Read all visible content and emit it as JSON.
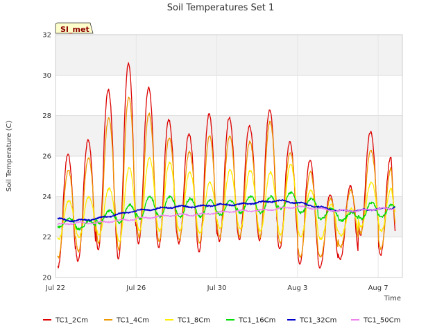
{
  "chart_data": {
    "type": "line",
    "title": "Soil Temperatures Set 1",
    "xlabel": "Time",
    "ylabel": "Soil Temperature (C)",
    "ylim": [
      20,
      32
    ],
    "yticks": [
      20,
      22,
      24,
      26,
      28,
      30,
      32
    ],
    "xlim_days": [
      0,
      17.2
    ],
    "xticks": [
      {
        "label": "Jul 22",
        "day": 0
      },
      {
        "label": "Jul 26",
        "day": 4
      },
      {
        "label": "Jul 30",
        "day": 8
      },
      {
        "label": "Aug 3",
        "day": 12
      },
      {
        "label": "Aug 7",
        "day": 16
      }
    ],
    "x_start_date": "Jul 22",
    "x_end_date": "Aug 8",
    "grid": true,
    "badge": "SI_met",
    "legend_position": "bottom",
    "series": [
      {
        "name": "TC1_2Cm",
        "color": "#dd0000",
        "daily_max": [
          26.1,
          26.8,
          29.3,
          30.6,
          29.4,
          27.8,
          27.1,
          28.1,
          27.9,
          27.5,
          28.3,
          26.7,
          25.8,
          24.1,
          24.5,
          27.2,
          25.9
        ],
        "daily_min": [
          20.5,
          20.8,
          21.4,
          20.9,
          21.7,
          21.5,
          21.7,
          21.3,
          21.8,
          21.9,
          21.8,
          21.4,
          20.7,
          20.5,
          20.9,
          22.1,
          21.1
        ],
        "end_value": 22.2
      },
      {
        "name": "TC1_4Cm",
        "color": "#ee9900",
        "daily_max": [
          25.3,
          25.9,
          27.9,
          28.9,
          28.1,
          26.9,
          26.2,
          27.0,
          27.0,
          26.7,
          27.7,
          26.2,
          25.2,
          23.9,
          24.3,
          26.3,
          25.4
        ],
        "daily_min": [
          21.0,
          21.3,
          21.7,
          21.4,
          22.0,
          21.8,
          21.9,
          21.7,
          22.0,
          22.0,
          22.0,
          21.7,
          21.0,
          21.0,
          21.5,
          22.2,
          21.4
        ],
        "end_value": 22.6
      },
      {
        "name": "TC1_8Cm",
        "color": "#ffee00",
        "daily_max": [
          23.8,
          24.0,
          24.4,
          25.4,
          25.9,
          25.7,
          25.2,
          24.7,
          25.3,
          25.3,
          25.2,
          25.6,
          24.3,
          23.6,
          23.4,
          24.7,
          24.4
        ],
        "daily_min": [
          21.9,
          22.0,
          22.1,
          21.8,
          22.3,
          22.3,
          22.3,
          22.2,
          22.4,
          22.4,
          22.3,
          22.1,
          22.0,
          21.9,
          22.1,
          22.5,
          22.3
        ],
        "end_value": 23.2
      },
      {
        "name": "TC1_16Cm",
        "color": "#00dd00",
        "daily_max": [
          22.9,
          22.8,
          23.3,
          23.6,
          24.0,
          24.0,
          23.9,
          23.8,
          23.8,
          24.0,
          24.0,
          24.2,
          23.9,
          23.4,
          23.2,
          23.7,
          23.6
        ],
        "daily_min": [
          22.5,
          22.4,
          22.7,
          22.7,
          22.9,
          23.0,
          23.0,
          23.0,
          23.1,
          23.2,
          23.2,
          23.4,
          23.2,
          22.9,
          22.8,
          22.9,
          23.0
        ],
        "end_value": 23.5
      },
      {
        "name": "TC1_32Cm",
        "color": "#0000cc",
        "daily_mean": [
          22.9,
          22.8,
          22.9,
          23.1,
          23.3,
          23.4,
          23.5,
          23.5,
          23.6,
          23.6,
          23.7,
          23.8,
          23.7,
          23.5,
          23.3,
          23.3,
          23.4
        ],
        "end_value": 23.5
      },
      {
        "name": "TC1_50Cm",
        "color": "#ee82ee",
        "daily_mean": [
          22.6,
          22.7,
          22.7,
          22.8,
          22.9,
          23.0,
          23.1,
          23.1,
          23.2,
          23.3,
          23.3,
          23.4,
          23.5,
          23.4,
          23.3,
          23.3,
          23.4
        ],
        "end_value": 23.4
      }
    ]
  }
}
